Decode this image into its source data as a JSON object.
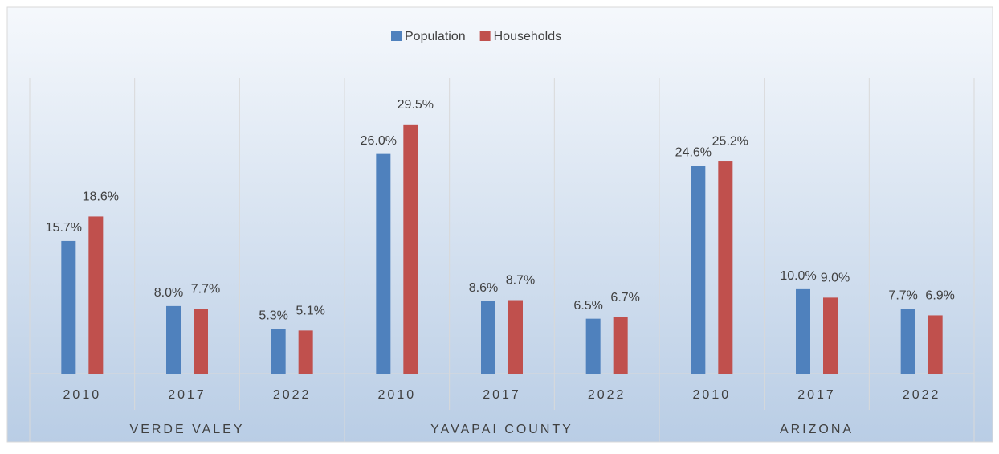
{
  "chart_data": {
    "type": "bar",
    "categories": [
      "2010",
      "2017",
      "2022",
      "2010",
      "2017",
      "2022",
      "2010",
      "2017",
      "2022"
    ],
    "groups": [
      "VERDE VALEY",
      "YAVAPAI COUNTY",
      "ARIZONA"
    ],
    "series": [
      {
        "name": "Population",
        "color": "#4f81bd",
        "values": [
          15.7,
          8.0,
          5.3,
          26.0,
          8.6,
          6.5,
          24.6,
          10.0,
          7.7
        ],
        "value_labels": [
          "15.7%",
          "8.0%",
          "5.3%",
          "26.0%",
          "8.6%",
          "6.5%",
          "24.6%",
          "10.0%",
          "7.7%"
        ]
      },
      {
        "name": "Households",
        "color": "#c0504d",
        "values": [
          18.6,
          7.7,
          5.1,
          29.5,
          8.7,
          6.7,
          25.2,
          9.0,
          6.9
        ],
        "value_labels": [
          "18.6%",
          "7.7%",
          "5.1%",
          "29.5%",
          "8.7%",
          "6.7%",
          "25.2%",
          "9.0%",
          "6.9%"
        ]
      }
    ],
    "ylim": [
      0,
      35
    ],
    "legend": "top"
  }
}
